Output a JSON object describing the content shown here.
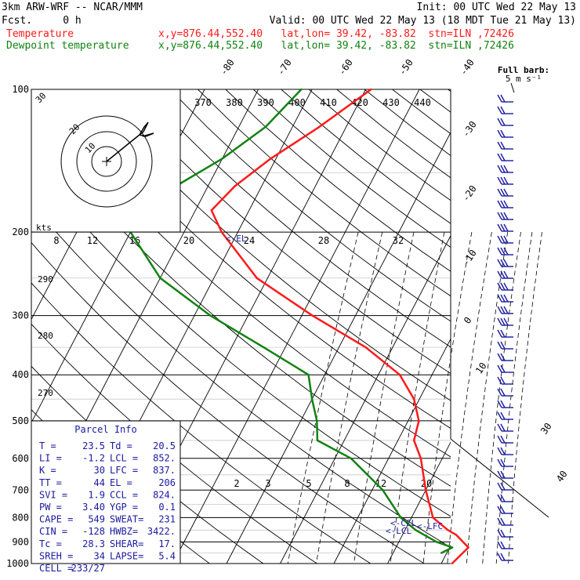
{
  "header": {
    "model": "3km ARW-WRF -- NCAR/MMM",
    "fcst": "Fcst.     0 h",
    "init": "Init: 00 UTC Wed 22 May 13",
    "valid": "Valid: 00 UTC Wed 22 May 13 (18 MDT Tue 21 May 13)",
    "temperature_label": "Temperature",
    "temperature_info": "x,y=876.44,552.40   lat,lon= 39.42, -83.82  stn=ILN ,72426",
    "dewpoint_label": "Dewpoint temperature",
    "dewpoint_info": "x,y=876.44,552.40   lat,lon= 39.42, -83.82  stn=ILN ,72426"
  },
  "colors": {
    "temperature": "#ff1a1a",
    "dewpoint": "#128212",
    "info_text": "#1a1aa0",
    "wind_barbs": "#1a1aa0"
  },
  "hodograph": {
    "units_label": "kts",
    "ring_labels": [
      "10",
      "20",
      "30"
    ]
  },
  "wind_barb_legend": {
    "title": "Full barb:",
    "unit": "5 m s⁻¹"
  },
  "parcel_info": {
    "title": "Parcel Info",
    "rows": [
      [
        "T  =",
        "23.5",
        "Td =",
        "20.5"
      ],
      [
        "LI =",
        "-1.2",
        "LCL =",
        "852."
      ],
      [
        "K  =",
        "30",
        "LFC =",
        "837."
      ],
      [
        "TT =",
        "44",
        "EL  =",
        "206"
      ],
      [
        "SVI =",
        "1.9",
        "CCL =",
        "824."
      ],
      [
        "PW =",
        "3.40",
        "YGP =",
        "0.1"
      ],
      [
        "CAPE =",
        "549",
        "SWEAT=",
        "231"
      ],
      [
        "CIN =",
        "-128",
        "HWBZ=",
        "3422."
      ],
      [
        "Tc =",
        "28.3",
        "SHEAR=",
        "17."
      ],
      [
        "SREH =",
        "34",
        "LAPSE=",
        "5.4"
      ],
      [
        "CELL =",
        "233/27",
        "",
        ""
      ]
    ]
  },
  "level_labels": {
    "el": "<-EL",
    "ccl": "<-CCL",
    "lcl": "<-LCL",
    "lfc": "<-LFC"
  },
  "chart_data": {
    "type": "line",
    "title": "",
    "xlabel": "",
    "ylabel": "",
    "y_scale": "log",
    "y_reversed": true,
    "ylim": [
      1000,
      100
    ],
    "pressure_ticks": [
      100,
      200,
      300,
      400,
      500,
      600,
      700,
      800,
      900,
      1000
    ],
    "isotherm_ticks": [
      -80,
      -70,
      -60,
      -50,
      -40,
      -30,
      -20,
      -10,
      0,
      10,
      30,
      40
    ],
    "theta_labels_top": [
      370,
      380,
      390,
      400,
      410,
      420,
      430,
      440
    ],
    "theta_labels_left": [
      280,
      290
    ],
    "theta_label_bottom_left": 270,
    "mixing_ratio_labels_mid": [
      8,
      12,
      16,
      20,
      24,
      28,
      32
    ],
    "mixing_ratio_labels_low": [
      2,
      3,
      5,
      8,
      12,
      20
    ],
    "series": [
      {
        "name": "Temperature",
        "x": [
          -39,
          -45,
          -51,
          -55,
          -57,
          -53,
          -42,
          -28,
          -15,
          -6,
          -1,
          2,
          3,
          6,
          10,
          14,
          18,
          20,
          23.5,
          22
        ],
        "p": [
          100,
          120,
          140,
          160,
          180,
          200,
          250,
          300,
          350,
          400,
          450,
          500,
          550,
          600,
          700,
          800,
          850,
          870,
          925,
          1000
        ]
      },
      {
        "name": "Dewpoint temperature",
        "x": [
          -52,
          -55,
          -60,
          -66,
          -70,
          -70,
          -60,
          -47,
          -34,
          -23,
          -20,
          -17,
          -15,
          -7,
          2,
          8,
          12,
          17,
          20.5,
          19
        ],
        "p": [
          100,
          120,
          140,
          160,
          180,
          200,
          250,
          300,
          350,
          400,
          450,
          500,
          550,
          600,
          700,
          800,
          850,
          900,
          925,
          950
        ]
      }
    ],
    "grid": true,
    "legend": "top-left"
  }
}
